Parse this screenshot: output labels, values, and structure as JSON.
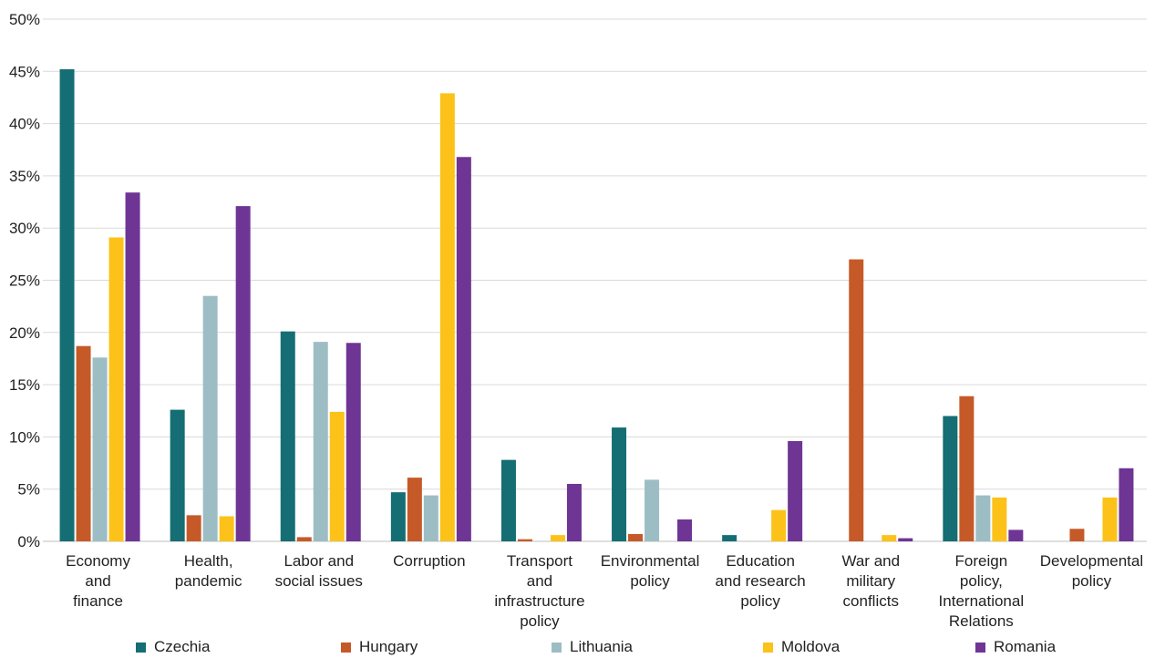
{
  "chart_data": {
    "type": "bar",
    "categories": [
      "Economy and finance",
      "Health, pandemic",
      "Labor and social issues",
      "Corruption",
      "Transport and infrastructure policy",
      "Environmental policy",
      "Education and research policy",
      "War and military conflicts",
      "Foreign policy, International Relations",
      "Developmental policy"
    ],
    "category_lines": [
      [
        "Economy",
        "and",
        "finance"
      ],
      [
        "Health,",
        "pandemic"
      ],
      [
        "Labor and",
        "social issues"
      ],
      [
        "Corruption"
      ],
      [
        "Transport",
        "and",
        "infrastructure",
        "policy"
      ],
      [
        "Environmental",
        "policy"
      ],
      [
        "Education",
        "and research",
        "policy"
      ],
      [
        "War and",
        "military",
        "conflicts"
      ],
      [
        "Foreign",
        "policy,",
        "International",
        "Relations"
      ],
      [
        "Developmental",
        "policy"
      ]
    ],
    "series": [
      {
        "name": "Czechia",
        "color": "#146e73",
        "values": [
          45.2,
          12.6,
          20.1,
          4.7,
          7.8,
          10.9,
          0.6,
          0,
          12.0,
          0
        ]
      },
      {
        "name": "Hungary",
        "color": "#c55a28",
        "values": [
          18.7,
          2.5,
          0.4,
          6.1,
          0.2,
          0.7,
          0,
          27.0,
          13.9,
          1.2
        ]
      },
      {
        "name": "Lithuania",
        "color": "#9dbdc4",
        "values": [
          17.6,
          23.5,
          19.1,
          4.4,
          0,
          5.9,
          0,
          0,
          4.4,
          0
        ]
      },
      {
        "name": "Moldova",
        "color": "#fcc21a",
        "values": [
          29.1,
          2.4,
          12.4,
          42.9,
          0.6,
          0,
          3.0,
          0.6,
          4.2,
          4.2
        ]
      },
      {
        "name": "Romania",
        "color": "#6e3594",
        "values": [
          33.4,
          32.1,
          19.0,
          36.8,
          5.5,
          2.1,
          9.6,
          0.3,
          1.1,
          7.0
        ]
      }
    ],
    "ylim": [
      0,
      50
    ],
    "yticks": [
      "0%",
      "5%",
      "10%",
      "15%",
      "20%",
      "25%",
      "30%",
      "35%",
      "40%",
      "45%",
      "50%"
    ],
    "grid": true,
    "legend_position": "bottom"
  }
}
